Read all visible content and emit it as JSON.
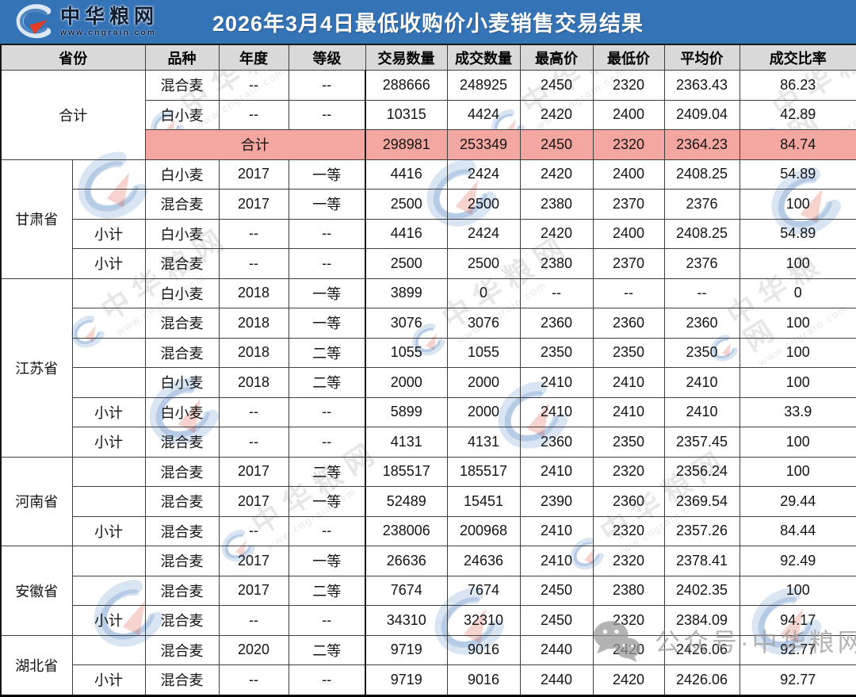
{
  "page": {
    "title": "2026年3月4日最低收购价小麦销售交易结果",
    "logo": {
      "name": "中华粮网",
      "url": "www.cngrain.com"
    }
  },
  "columns": [
    "省份",
    "品种",
    "年度",
    "等级",
    "交易数量",
    "成交数量",
    "最高价",
    "最低价",
    "平均价",
    "成交比率"
  ],
  "sections": [
    {
      "province": "合计",
      "province_colspan": 2,
      "rows": [
        {
          "type": "data",
          "sub": "",
          "variety": "混合麦",
          "year": "--",
          "grade": "--",
          "values": [
            "288666",
            "248925",
            "2450",
            "2320",
            "2363.43",
            "86.23"
          ]
        },
        {
          "type": "data",
          "sub": "",
          "variety": "白小麦",
          "year": "--",
          "grade": "--",
          "values": [
            "10315",
            "4424",
            "2420",
            "2400",
            "2409.04",
            "42.89"
          ]
        },
        {
          "type": "total",
          "label": "合计",
          "values": [
            "298981",
            "253349",
            "2450",
            "2320",
            "2364.23",
            "84.74"
          ]
        }
      ]
    },
    {
      "province": "甘肃省",
      "rows": [
        {
          "type": "data",
          "sub": "",
          "variety": "白小麦",
          "year": "2017",
          "grade": "一等",
          "values": [
            "4416",
            "2424",
            "2420",
            "2400",
            "2408.25",
            "54.89"
          ]
        },
        {
          "type": "data",
          "sub": "",
          "variety": "混合麦",
          "year": "2017",
          "grade": "一等",
          "values": [
            "2500",
            "2500",
            "2380",
            "2370",
            "2376",
            "100"
          ]
        },
        {
          "type": "data",
          "sub": "小计",
          "variety": "白小麦",
          "year": "--",
          "grade": "--",
          "values": [
            "4416",
            "2424",
            "2420",
            "2400",
            "2408.25",
            "54.89"
          ]
        },
        {
          "type": "data",
          "sub": "小计",
          "variety": "混合麦",
          "year": "--",
          "grade": "--",
          "values": [
            "2500",
            "2500",
            "2380",
            "2370",
            "2376",
            "100"
          ]
        }
      ]
    },
    {
      "province": "江苏省",
      "rows": [
        {
          "type": "data",
          "sub": "",
          "variety": "白小麦",
          "year": "2018",
          "grade": "一等",
          "values": [
            "3899",
            "0",
            "--",
            "--",
            "--",
            "0"
          ]
        },
        {
          "type": "data",
          "sub": "",
          "variety": "混合麦",
          "year": "2018",
          "grade": "一等",
          "values": [
            "3076",
            "3076",
            "2360",
            "2360",
            "2360",
            "100"
          ]
        },
        {
          "type": "data",
          "sub": "",
          "variety": "混合麦",
          "year": "2018",
          "grade": "二等",
          "values": [
            "1055",
            "1055",
            "2350",
            "2350",
            "2350",
            "100"
          ]
        },
        {
          "type": "data",
          "sub": "",
          "variety": "白小麦",
          "year": "2018",
          "grade": "二等",
          "values": [
            "2000",
            "2000",
            "2410",
            "2410",
            "2410",
            "100"
          ]
        },
        {
          "type": "data",
          "sub": "小计",
          "variety": "白小麦",
          "year": "--",
          "grade": "--",
          "values": [
            "5899",
            "2000",
            "2410",
            "2410",
            "2410",
            "33.9"
          ]
        },
        {
          "type": "data",
          "sub": "小计",
          "variety": "混合麦",
          "year": "--",
          "grade": "--",
          "values": [
            "4131",
            "4131",
            "2360",
            "2350",
            "2357.45",
            "100"
          ]
        }
      ]
    },
    {
      "province": "河南省",
      "rows": [
        {
          "type": "data",
          "sub": "",
          "variety": "混合麦",
          "year": "2017",
          "grade": "二等",
          "values": [
            "185517",
            "185517",
            "2410",
            "2320",
            "2356.24",
            "100"
          ]
        },
        {
          "type": "data",
          "sub": "",
          "variety": "混合麦",
          "year": "2017",
          "grade": "一等",
          "values": [
            "52489",
            "15451",
            "2390",
            "2360",
            "2369.54",
            "29.44"
          ]
        },
        {
          "type": "data",
          "sub": "小计",
          "variety": "混合麦",
          "year": "--",
          "grade": "--",
          "values": [
            "238006",
            "200968",
            "2410",
            "2320",
            "2357.26",
            "84.44"
          ]
        }
      ]
    },
    {
      "province": "安徽省",
      "rows": [
        {
          "type": "data",
          "sub": "",
          "variety": "混合麦",
          "year": "2017",
          "grade": "一等",
          "values": [
            "26636",
            "24636",
            "2410",
            "2320",
            "2378.41",
            "92.49"
          ]
        },
        {
          "type": "data",
          "sub": "",
          "variety": "混合麦",
          "year": "2017",
          "grade": "二等",
          "values": [
            "7674",
            "7674",
            "2450",
            "2380",
            "2402.35",
            "100"
          ]
        },
        {
          "type": "data",
          "sub": "小计",
          "variety": "混合麦",
          "year": "--",
          "grade": "--",
          "values": [
            "34310",
            "32310",
            "2450",
            "2320",
            "2384.09",
            "94.17"
          ]
        }
      ]
    },
    {
      "province": "湖北省",
      "rows": [
        {
          "type": "data",
          "sub": "",
          "variety": "混合麦",
          "year": "2020",
          "grade": "二等",
          "values": [
            "9719",
            "9016",
            "2440",
            "2420",
            "2426.06",
            "92.77"
          ]
        },
        {
          "type": "data",
          "sub": "小计",
          "variety": "混合麦",
          "year": "--",
          "grade": "--",
          "values": [
            "9719",
            "9016",
            "2440",
            "2420",
            "2426.06",
            "92.77"
          ]
        }
      ]
    }
  ],
  "watermarks": {
    "brand_text": "中华粮网",
    "brand_url": "www.cngrain.com",
    "footer_text": "公众号·中华粮网"
  },
  "colors": {
    "header_bg": "#3573b7",
    "column_header_bg": "#d9d9d9",
    "total_row_bg": "#f4a6a1",
    "logo_red": "#e23b28",
    "logo_blue": "#4e86c0"
  }
}
